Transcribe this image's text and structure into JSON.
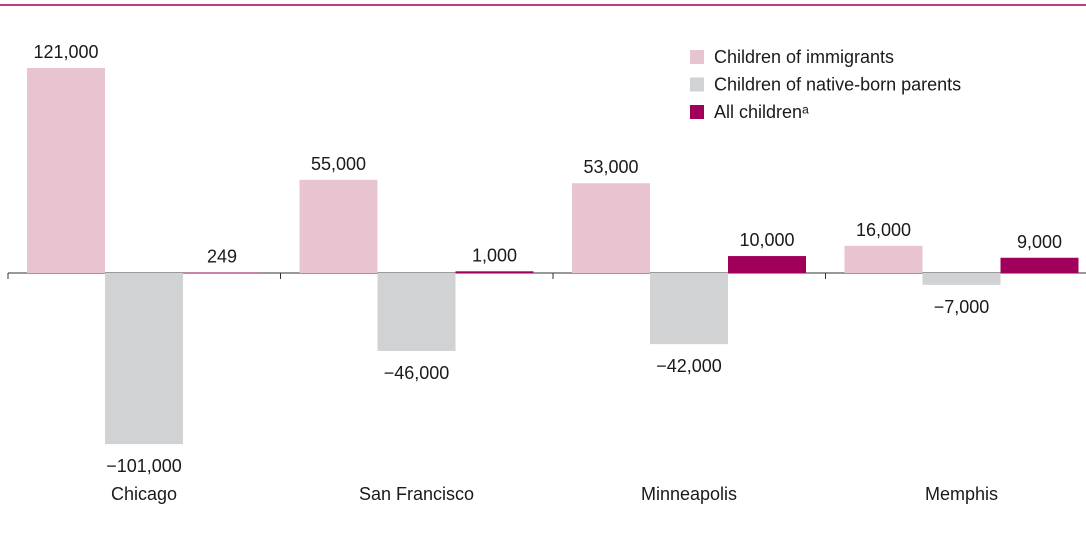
{
  "chart_data": {
    "type": "bar",
    "categories": [
      "Chicago",
      "San Francisco",
      "Minneapolis",
      "Memphis"
    ],
    "series": [
      {
        "name": "Children of immigrants",
        "color": "#e8c4d0",
        "values": [
          121000,
          55000,
          53000,
          16000
        ],
        "value_labels": [
          "121,000",
          "55,000",
          "53,000",
          "16,000"
        ]
      },
      {
        "name": "Children of native-born parents",
        "color": "#d1d2d4",
        "values": [
          -101000,
          -46000,
          -42000,
          -7000
        ],
        "value_labels": [
          "−101,000",
          "−46,000",
          "−42,000",
          "−7,000"
        ]
      },
      {
        "name": "All childrenᵃ",
        "color": "#a0005a",
        "values": [
          249,
          1000,
          10000,
          9000
        ],
        "value_labels": [
          "249",
          "1,000",
          "10,000",
          "9,000"
        ]
      }
    ],
    "legend": "top-right"
  }
}
